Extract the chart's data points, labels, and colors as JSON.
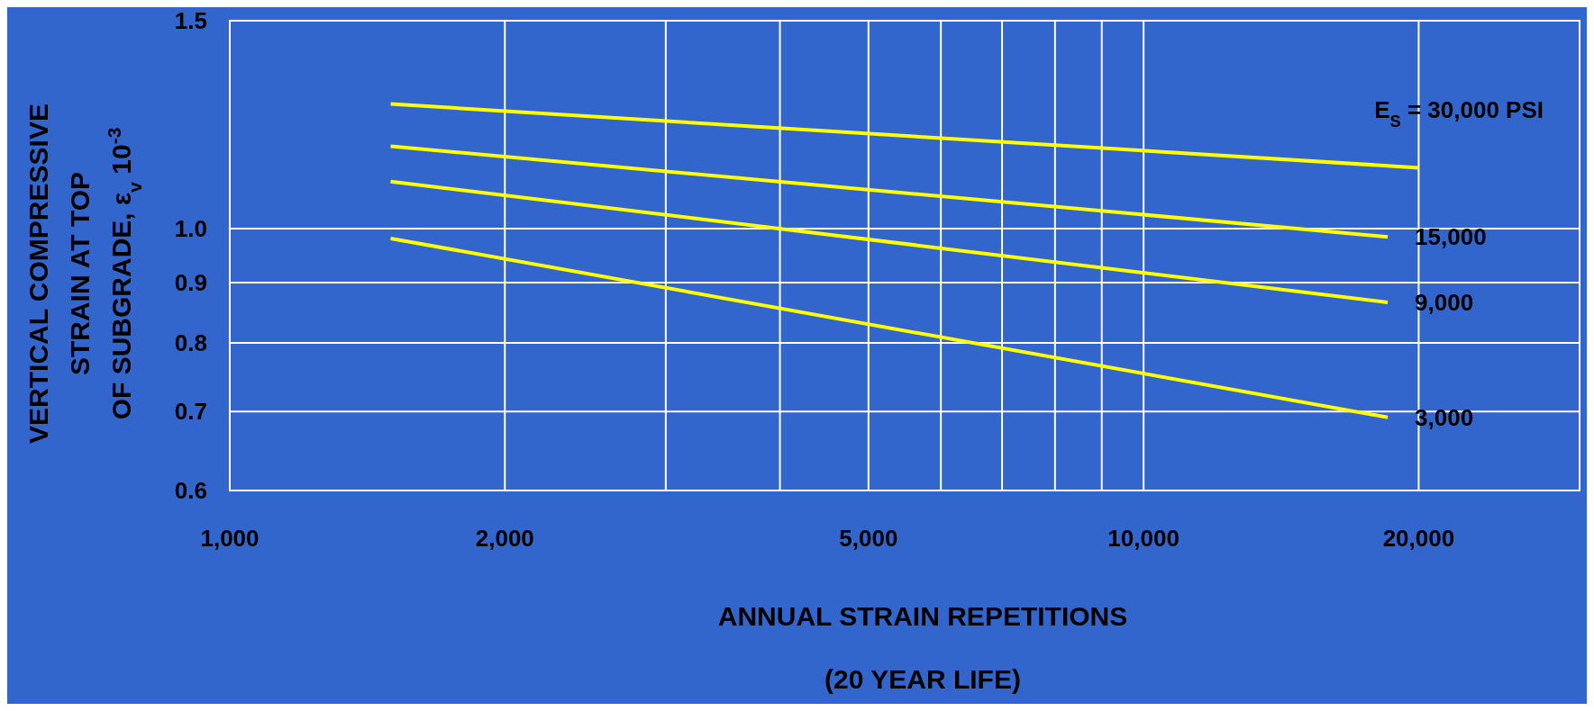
{
  "chart_data": {
    "type": "line",
    "xlabel": "ANNUAL STRAIN REPETITIONS\n(20 YEAR LIFE)",
    "ylabel": "VERTICAL COMPRESSIVE\nSTRAIN AT TOP\nOF SUBGRADE, ε$_{v}$ 10$^{-3}$",
    "log": "xy",
    "grid": true,
    "legend": false,
    "marker": "none",
    "line_style": "solid",
    "xlim": [
      1000,
      30000
    ],
    "xticks": [
      {
        "value": 1000,
        "label": "1,000"
      },
      {
        "value": 2000,
        "label": "2,000"
      },
      {
        "value": 3000,
        "label": null
      },
      {
        "value": 4000,
        "label": null
      },
      {
        "value": 5000,
        "label": "5,000"
      },
      {
        "value": 6000,
        "label": null
      },
      {
        "value": 7000,
        "label": null
      },
      {
        "value": 8000,
        "label": null
      },
      {
        "value": 9000,
        "label": null
      },
      {
        "value": 10000,
        "label": "10,000"
      },
      {
        "value": 20000,
        "label": "20,000"
      }
    ],
    "ylim": [
      0.6,
      1.5
    ],
    "yticks": [
      0.6,
      0.7,
      0.8,
      0.9,
      {
        "value": 1,
        "label": "1.0"
      },
      1.5
    ],
    "series": [
      {
        "name": "E$_{S}$ = 30,000 PSI",
        "color": "#ffff00",
        "x": [
          1500,
          20000
        ],
        "values": [
          1.275,
          1.126
        ]
      },
      {
        "name": "15,000",
        "color": "#ffff00",
        "x": [
          1500,
          18500
        ],
        "values": [
          1.174,
          0.984
        ]
      },
      {
        "name": "9,000",
        "color": "#ffff00",
        "x": [
          1500,
          18500
        ],
        "values": [
          1.096,
          0.866
        ]
      },
      {
        "name": "3,000",
        "color": "#ffff00",
        "x": [
          1500,
          18500
        ],
        "values": [
          0.981,
          0.692
        ]
      }
    ]
  }
}
